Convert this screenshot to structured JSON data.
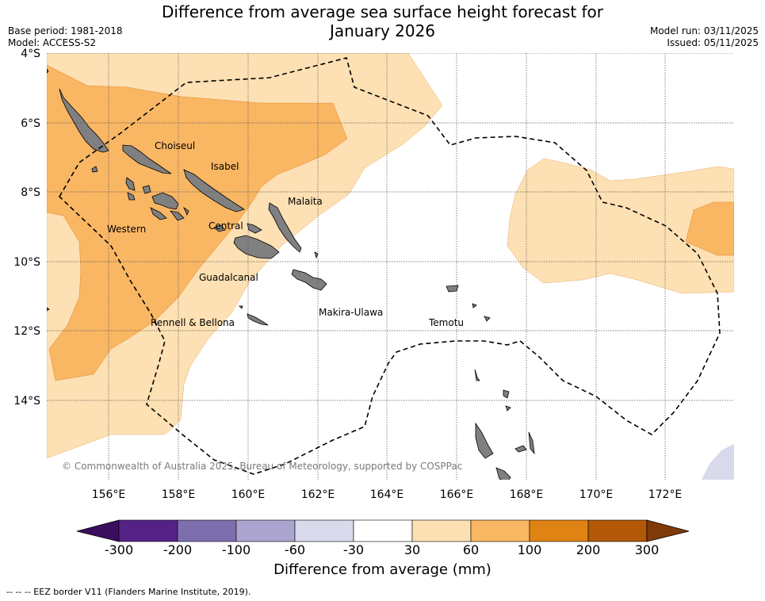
{
  "title_line1": "Difference from average sea surface height forecast for",
  "title_line2": "January 2026",
  "base_period": "Base period: 1981-2018",
  "model": "Model: ACCESS-S2",
  "model_run": "Model run: 03/11/2025",
  "issued": "Issued: 05/11/2025",
  "lat_labels": [
    "4°S",
    "6°S",
    "8°S",
    "10°S",
    "12°S",
    "14°S"
  ],
  "lon_labels": [
    "156°E",
    "158°E",
    "160°E",
    "162°E",
    "164°E",
    "166°E",
    "168°E",
    "170°E",
    "172°E"
  ],
  "provinces": [
    "Choiseul",
    "Isabel",
    "Malaita",
    "Western",
    "Central",
    "Guadalcanal",
    "Makira-Ulawa",
    "Rennell & Bellona",
    "Temotu"
  ],
  "copyright": "© Commonwealth of Australia 2025, Bureau of Meteorology, supported by COSPPac",
  "colorbar": {
    "ticks": [
      "-300",
      "-200",
      "-100",
      "-60",
      "-30",
      "30",
      "60",
      "100",
      "200",
      "300"
    ],
    "colors": [
      "#3a0d5e",
      "#542287",
      "#7d6fad",
      "#aba5cf",
      "#d8d9ea",
      "#ffffff",
      "#fde0b3",
      "#f9b663",
      "#e08315",
      "#b25806",
      "#7f3a07"
    ],
    "label": "Difference from average (mm)"
  },
  "land_color": "#808080",
  "footnote": "--  --  -- EEZ border V11 (Flanders Marine Institute, 2019)."
}
